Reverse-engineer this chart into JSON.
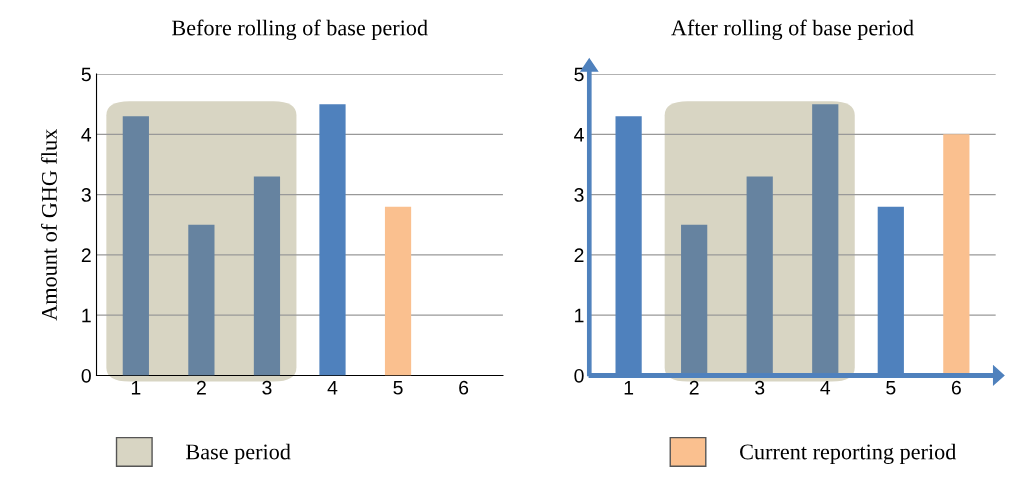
{
  "chart_data": [
    {
      "type": "bar",
      "title": "Before rolling of base period",
      "ylabel": "Amount of GHG flux",
      "categories": [
        "1",
        "2",
        "3",
        "4",
        "5",
        "6"
      ],
      "ylim": [
        0,
        5
      ],
      "yticks": [
        0,
        1,
        2,
        3,
        4,
        5
      ],
      "grid": "y",
      "legend": "bottom left",
      "series": [
        {
          "color": "#6683a0",
          "values": [
            4.3,
            2.5,
            3.3,
            null,
            null,
            null
          ]
        },
        {
          "color": "#4f81bd",
          "values": [
            null,
            null,
            null,
            4.5,
            null,
            null
          ]
        },
        {
          "color": "#fac08f",
          "values": [
            null,
            null,
            null,
            null,
            2.8,
            null
          ]
        }
      ],
      "bands": [
        {
          "axis": "x",
          "from": "1",
          "to": "3",
          "label": "Base period",
          "color": "#d8d5c3"
        }
      ]
    },
    {
      "type": "bar",
      "title": "After rolling of base period",
      "categories": [
        "1",
        "2",
        "3",
        "4",
        "5",
        "6"
      ],
      "ylim": [
        0,
        5
      ],
      "yticks": [
        0,
        1,
        2,
        3,
        4,
        5
      ],
      "grid": "y",
      "legend": "bottom",
      "series": [
        {
          "color": "#4f81bd",
          "values": [
            4.3,
            null,
            null,
            null,
            2.8,
            null
          ]
        },
        {
          "color": "#6683a0",
          "values": [
            null,
            2.5,
            3.3,
            4.5,
            null,
            null
          ]
        },
        {
          "name": "Current reporting period",
          "color": "#fac08f",
          "values": [
            null,
            null,
            null,
            null,
            null,
            4.0
          ]
        }
      ],
      "bands": [
        {
          "axis": "x",
          "from": "2",
          "to": "4",
          "color": "#d8d5c3"
        }
      ]
    }
  ]
}
